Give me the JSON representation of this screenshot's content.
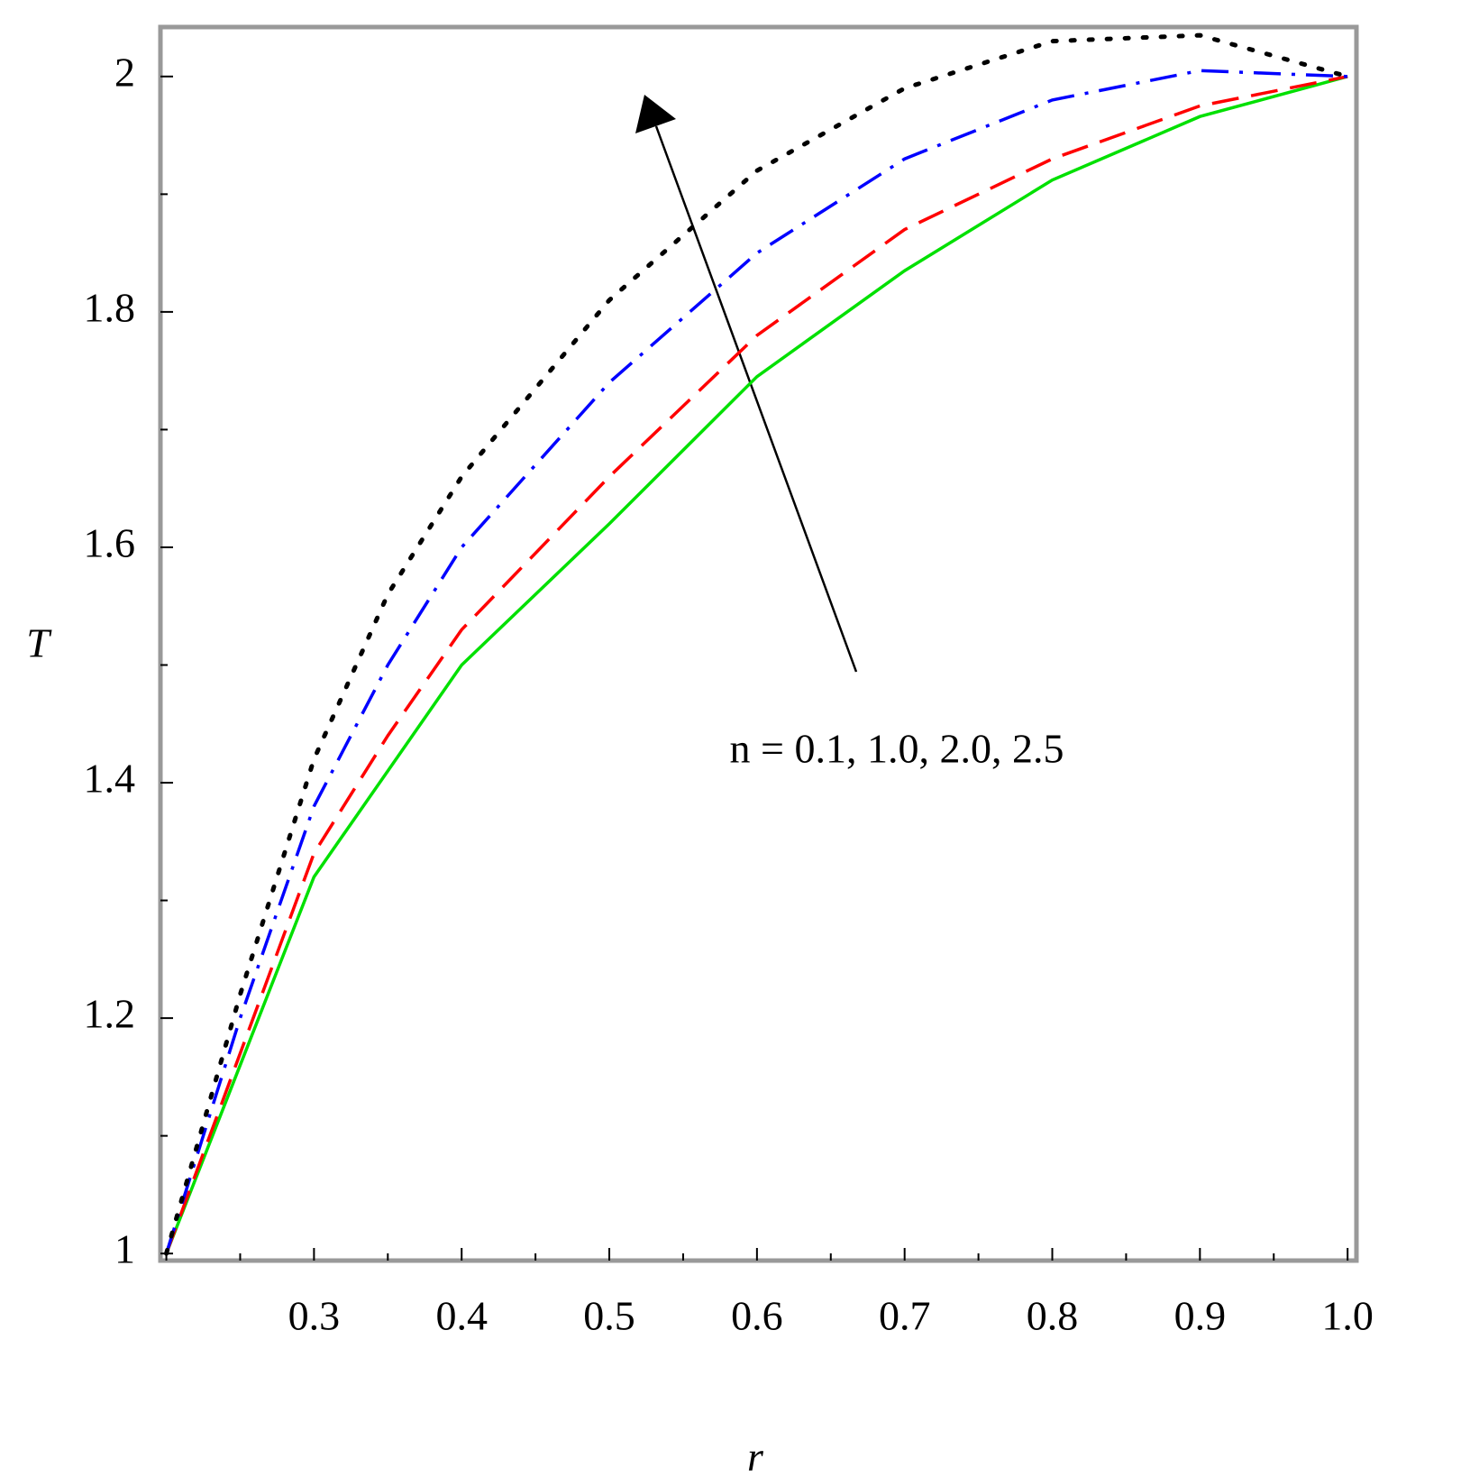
{
  "chart_data": {
    "type": "line",
    "x_label": "r",
    "y_label": "T",
    "annotation": "n = 0.1, 1.0, 2.0, 2.5",
    "xlim": [
      0.196,
      1.006
    ],
    "ylim": [
      0.994,
      2.042
    ],
    "xticks": [
      0.3,
      0.4,
      0.5,
      0.6,
      0.7,
      0.8,
      0.9,
      {
        "value": 1.0,
        "label": "1.0"
      }
    ],
    "xminorticks": [
      0.2,
      0.25,
      0.35,
      0.45,
      0.55,
      0.65,
      0.75,
      0.85,
      0.95
    ],
    "yticks": [
      1,
      1.2,
      1.4,
      1.6,
      1.8,
      2
    ],
    "yminorticks": [
      1.1,
      1.3,
      1.5,
      1.7,
      1.9
    ],
    "x": [
      0.2,
      0.25,
      0.3,
      0.35,
      0.4,
      0.5,
      0.6,
      0.7,
      0.8,
      0.9,
      1.0
    ],
    "series": [
      {
        "color": "#00e000",
        "style": "solid",
        "values": [
          1,
          1.16,
          1.32,
          1.41,
          1.5,
          1.62,
          1.745,
          1.835,
          1.912,
          1.966,
          2
        ]
      },
      {
        "color": "#ff0000",
        "style": "dash",
        "values": [
          1,
          1.17,
          1.34,
          1.44,
          1.53,
          1.66,
          1.78,
          1.87,
          1.93,
          1.975,
          2
        ]
      },
      {
        "color": "#0000ff",
        "style": "dashdot",
        "values": [
          1,
          1.2,
          1.38,
          1.5,
          1.6,
          1.74,
          1.85,
          1.93,
          1.98,
          2.005,
          2
        ]
      },
      {
        "color": "#000000",
        "style": "dot",
        "values": [
          1,
          1.22,
          1.42,
          1.56,
          1.66,
          1.81,
          1.92,
          1.99,
          2.03,
          2.035,
          2
        ]
      }
    ]
  }
}
